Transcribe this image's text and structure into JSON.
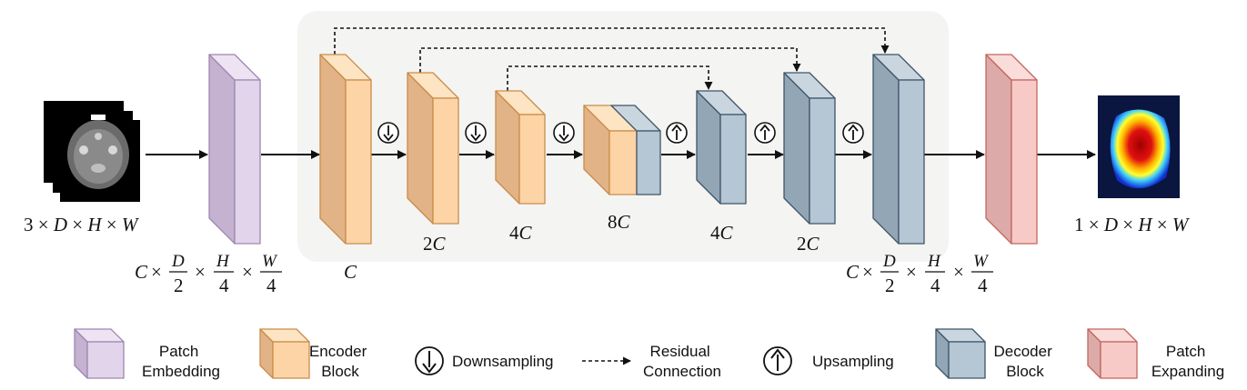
{
  "dims": {
    "input": {
      "coef": "3",
      "D": "D",
      "H": "H",
      "W": "W"
    },
    "output": {
      "coef": "1",
      "D": "D",
      "H": "H",
      "W": "W"
    },
    "patch_embed": {
      "C": "C",
      "D": "D",
      "den_d": "2",
      "H": "H",
      "den_h": "4",
      "W": "W",
      "den_w": "4"
    },
    "patch_expand": {
      "C": "C",
      "D": "D",
      "den_d": "2",
      "H": "H",
      "den_h": "4",
      "W": "W",
      "den_w": "4"
    }
  },
  "stages": {
    "enc1": {
      "coef": "",
      "sym": "C"
    },
    "enc2": {
      "coef": "2",
      "sym": "C"
    },
    "enc3": {
      "coef": "4",
      "sym": "C"
    },
    "bottleneck": {
      "coef": "8",
      "sym": "C"
    },
    "dec3": {
      "coef": "4",
      "sym": "C"
    },
    "dec2": {
      "coef": "2",
      "sym": "C"
    }
  },
  "legend": {
    "patch_embedding": {
      "line1": "Patch",
      "line2": "Embedding"
    },
    "encoder_block": {
      "line1": "Encoder",
      "line2": "Block"
    },
    "downsampling": "Downsampling",
    "residual": {
      "line1": "Residual",
      "line2": "Connection"
    },
    "upsampling": "Upsampling",
    "decoder_block": {
      "line1": "Decoder",
      "line2": "Block"
    },
    "patch_expanding": {
      "line1": "Patch",
      "line2": "Expanding"
    }
  },
  "colors": {
    "purple_front": "#e2d4eb",
    "purple_side": "#c4b2d0",
    "purple_top": "#ede3f3",
    "purple_stroke": "#9f86b1",
    "orange_front": "#fcd4a6",
    "orange_side": "#e2b386",
    "orange_top": "#fde4c2",
    "orange_stroke": "#c98c4a",
    "blue_front": "#b5c6d4",
    "blue_side": "#92a6b6",
    "blue_top": "#c9d6e0",
    "blue_stroke": "#3f5566",
    "red_front": "#f7cac8",
    "red_side": "#dcaaa8",
    "red_top": "#fadcda",
    "red_stroke": "#c2665e",
    "panel_bg": "#f5f5f3"
  }
}
